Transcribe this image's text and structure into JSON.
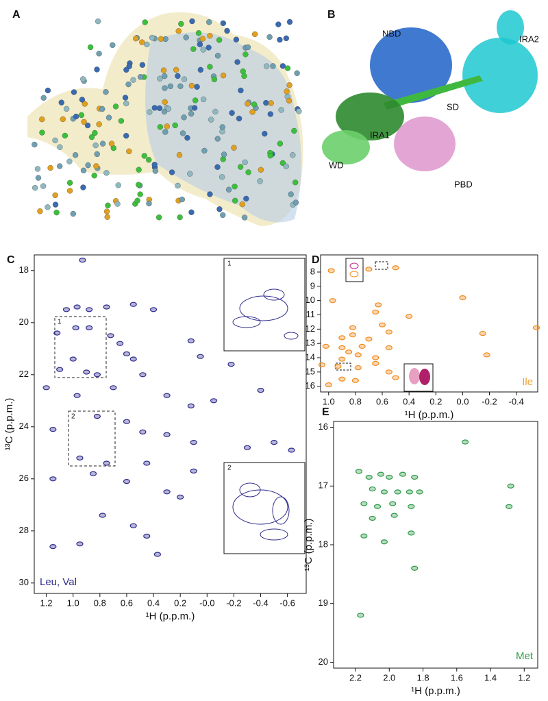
{
  "panels": {
    "a": {
      "label": "A"
    },
    "b": {
      "label": "B",
      "domains": [
        "NBD",
        "IRA2",
        "SD",
        "IRA1",
        "WD",
        "PBD"
      ]
    }
  },
  "chart_data": [
    {
      "type": "scatter",
      "panel": "C",
      "color": "#2e2a8c",
      "annotation": "Leu, Val",
      "annotation_color": "#2e2a8c",
      "insets": [
        "1",
        "2"
      ],
      "xlabel": "¹H (p.p.m.)",
      "ylabel": "¹³C (p.p.m.)",
      "xlim": [
        1.29,
        -0.74
      ],
      "ylim": [
        17.4,
        30.4
      ],
      "xticks": [
        1.2,
        {
          "value": 1,
          "label": "1.0"
        },
        0.8,
        0.6,
        0.4,
        0.2,
        {
          "value": 0,
          "label": "-0.0"
        },
        -0.2,
        -0.4,
        -0.6
      ],
      "yticks": [
        18,
        20,
        22,
        24,
        26,
        28,
        30
      ],
      "x": [
        0.93,
        1.05,
        0.97,
        0.88,
        0.75,
        0.55,
        0.4,
        1.12,
        0.98,
        0.88,
        0.72,
        0.65,
        0.6,
        0.55,
        0.12,
        0.05,
        -0.18,
        -0.4,
        1.1,
        1.0,
        0.9,
        0.82,
        1.2,
        0.97,
        0.7,
        0.48,
        0.3,
        0.12,
        -0.05,
        1.15,
        0.82,
        0.6,
        0.48,
        0.3,
        0.1,
        -0.3,
        -0.5,
        -0.63,
        0.95,
        0.85,
        0.75,
        1.15,
        0.6,
        0.45,
        0.3,
        0.2,
        0.78,
        0.55,
        0.45,
        0.95,
        1.15,
        0.37,
        0.1
      ],
      "values": [
        17.6,
        19.5,
        19.4,
        19.5,
        19.4,
        19.3,
        19.5,
        20.4,
        20.2,
        20.2,
        20.5,
        20.8,
        21.2,
        21.4,
        20.7,
        21.3,
        21.6,
        22.6,
        21.8,
        21.4,
        21.9,
        22.0,
        22.5,
        22.8,
        22.5,
        22.0,
        22.8,
        23.2,
        23.0,
        24.1,
        23.6,
        23.8,
        24.2,
        24.3,
        24.6,
        24.8,
        24.6,
        24.9,
        25.2,
        25.8,
        25.4,
        26.0,
        26.1,
        25.4,
        26.5,
        26.7,
        27.4,
        27.8,
        28.2,
        28.5,
        28.6,
        28.9,
        25.7
      ]
    },
    {
      "type": "scatter",
      "panel": "D",
      "color": "#f08a1c",
      "annotation": "Ile",
      "annotation_color": "#f0a030",
      "xlabel": "¹H (p.p.m.)",
      "xlim": [
        1.06,
        -0.56
      ],
      "ylim": [
        6.8,
        16.4
      ],
      "xticks": [
        {
          "value": 1,
          "label": "1.0"
        },
        0.8,
        0.6,
        0.4,
        0.2,
        {
          "value": 0,
          "label": "0.0"
        },
        -0.2,
        -0.4
      ],
      "yticks": [
        8,
        9,
        10,
        11,
        12,
        13,
        14,
        15,
        16
      ],
      "x": [
        0.98,
        0.7,
        0.5,
        0.97,
        0.63,
        0.0,
        0.65,
        0.4,
        0.6,
        0.82,
        0.82,
        0.55,
        0.9,
        0.7,
        -0.15,
        -0.55,
        1.02,
        0.9,
        0.75,
        0.55,
        0.85,
        0.78,
        0.65,
        0.9,
        1.05,
        0.93,
        0.78,
        -0.18,
        0.55,
        0.9,
        0.8,
        1.0,
        0.5,
        0.65
      ],
      "values": [
        7.9,
        7.8,
        7.7,
        10.0,
        10.3,
        9.8,
        10.8,
        11.1,
        11.7,
        11.9,
        12.4,
        12.2,
        12.6,
        12.7,
        12.3,
        11.9,
        13.2,
        13.3,
        13.2,
        13.3,
        13.6,
        13.8,
        14.0,
        14.1,
        14.5,
        14.6,
        14.7,
        13.8,
        15.0,
        15.5,
        15.6,
        15.9,
        15.4,
        14.4
      ]
    },
    {
      "type": "scatter",
      "panel": "E",
      "color": "#2e9a48",
      "annotation": "Met",
      "annotation_color": "#2e9a48",
      "xlabel": "¹H (p.p.m.)",
      "ylabel": "¹³C (p.p.m.)",
      "xlim": [
        2.33,
        1.12
      ],
      "ylim": [
        15.9,
        20.1
      ],
      "xticks": [
        2.2,
        {
          "value": 2,
          "label": "2.0"
        },
        1.8,
        1.6,
        1.4,
        1.2
      ],
      "yticks": [
        16,
        17,
        18,
        19,
        20
      ],
      "x": [
        1.55,
        2.18,
        2.12,
        2.05,
        2.0,
        1.92,
        1.85,
        2.1,
        2.03,
        1.95,
        1.88,
        1.82,
        2.15,
        2.07,
        1.98,
        1.87,
        2.1,
        1.97,
        2.15,
        2.03,
        1.87,
        1.85,
        2.17,
        1.28,
        1.29
      ],
      "values": [
        16.25,
        16.75,
        16.85,
        16.8,
        16.85,
        16.8,
        16.85,
        17.05,
        17.1,
        17.1,
        17.1,
        17.1,
        17.3,
        17.35,
        17.3,
        17.35,
        17.55,
        17.5,
        17.85,
        17.95,
        17.8,
        18.4,
        19.2,
        17.0,
        17.35
      ]
    }
  ]
}
